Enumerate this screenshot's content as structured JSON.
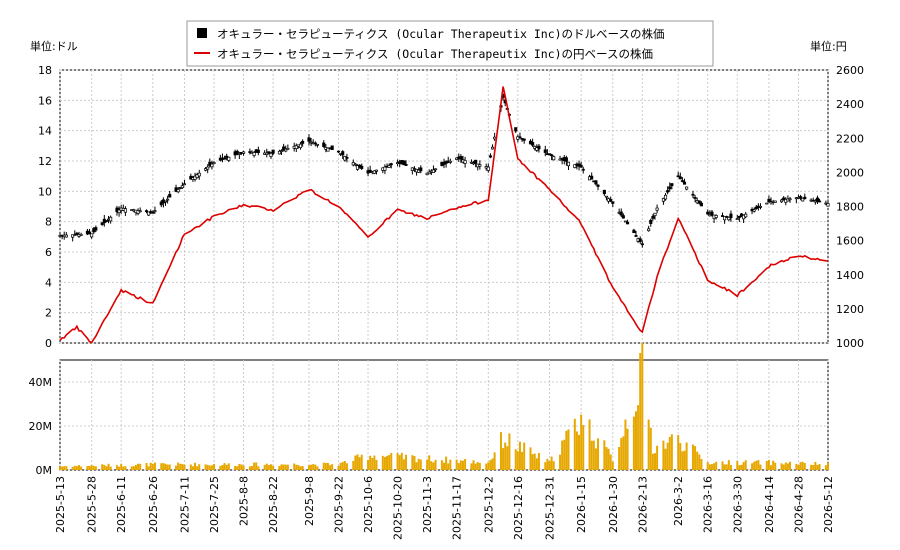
{
  "chart_data": {
    "type": "line",
    "left_unit_label": "単位:ドル",
    "right_unit_label": "単位:円",
    "legend": {
      "placement": "top-center",
      "entries": [
        {
          "name": "オキュラー・セラピューティクス (Ocular Therapeutix Inc)のドルベースの株価",
          "color": "#000000",
          "marker": "square"
        },
        {
          "name": "オキュラー・セラピューティクス (Ocular Therapeutix Inc)の円ベースの株価",
          "color": "#dd0000",
          "marker": "line"
        }
      ]
    },
    "price_axis_left": {
      "min": 0,
      "max": 18,
      "ticks": [
        0,
        2,
        4,
        6,
        8,
        10,
        12,
        14,
        16,
        18
      ]
    },
    "price_axis_right": {
      "min": 1000,
      "max": 2600,
      "ticks": [
        1000,
        1200,
        1400,
        1600,
        1800,
        2000,
        2200,
        2400,
        2600
      ]
    },
    "volume_axis": {
      "min": 0,
      "max": 50000000,
      "ticks": [
        0,
        20000000,
        40000000
      ],
      "tick_labels": [
        "0M",
        "20M",
        "40M"
      ]
    },
    "x_ticks": [
      "2025-5-13",
      "2025-5-28",
      "2025-6-11",
      "2025-6-26",
      "2025-7-11",
      "2025-7-25",
      "2025-8-8",
      "2025-8-22",
      "2025-9-8",
      "2025-9-22",
      "2025-10-6",
      "2025-10-20",
      "2025-11-3",
      "2025-11-17",
      "2025-12-2",
      "2025-12-16",
      "2025-12-31",
      "2026-1-15",
      "2026-1-30",
      "2026-2-13",
      "2026-3-2",
      "2026-3-16",
      "2026-3-30",
      "2026-4-14",
      "2026-4-28",
      "2026-5-12"
    ],
    "grid": true,
    "series": [
      {
        "name": "オキュラー・セラピューティクス (Ocular Therapeutix Inc)のドルベースの株価",
        "unit": "USD",
        "x": [
          "2025-5-13",
          "2025-5-28",
          "2025-6-11",
          "2025-6-26",
          "2025-7-11",
          "2025-7-25",
          "2025-8-8",
          "2025-8-22",
          "2025-9-8",
          "2025-9-22",
          "2025-10-6",
          "2025-10-20",
          "2025-11-3",
          "2025-11-17",
          "2025-12-2",
          "2025-12-9",
          "2025-12-16",
          "2025-12-31",
          "2026-1-15",
          "2026-1-30",
          "2026-2-13",
          "2026-2-20",
          "2026-3-2",
          "2026-3-16",
          "2026-3-30",
          "2026-4-14",
          "2026-4-28",
          "2026-5-12"
        ],
        "values": [
          7.1,
          7.2,
          8.9,
          8.6,
          10.5,
          11.9,
          12.6,
          12.5,
          13.3,
          12.6,
          11.2,
          11.9,
          11.2,
          12.2,
          11.6,
          16.2,
          13.6,
          12.4,
          11.6,
          9.2,
          6.5,
          8.9,
          11.0,
          8.5,
          8.2,
          9.3,
          9.6,
          9.2
        ]
      },
      {
        "name": "オキュラー・セラピューティクス (Ocular Therapeutix Inc)の円ベースの株価",
        "unit": "JPY",
        "x": [
          "2025-5-13",
          "2025-5-21",
          "2025-5-28",
          "2025-6-11",
          "2025-6-26",
          "2025-7-11",
          "2025-7-25",
          "2025-8-8",
          "2025-8-22",
          "2025-9-8",
          "2025-9-22",
          "2025-10-6",
          "2025-10-20",
          "2025-11-3",
          "2025-11-17",
          "2025-12-2",
          "2025-12-9",
          "2025-12-16",
          "2025-12-31",
          "2026-1-15",
          "2026-1-30",
          "2026-2-13",
          "2026-2-20",
          "2026-3-2",
          "2026-3-16",
          "2026-3-30",
          "2026-4-14",
          "2026-4-28",
          "2026-5-12"
        ],
        "values": [
          1020,
          1090,
          1000,
          1310,
          1230,
          1640,
          1740,
          1810,
          1780,
          1900,
          1800,
          1620,
          1780,
          1730,
          1790,
          1840,
          2500,
          2080,
          1900,
          1700,
          1320,
          1060,
          1390,
          1730,
          1370,
          1280,
          1450,
          1510,
          1480
        ]
      },
      {
        "name": "volume",
        "unit": "shares",
        "x": [
          "2025-5-13",
          "2025-6-26",
          "2025-9-22",
          "2025-10-6",
          "2025-12-2",
          "2025-12-9",
          "2025-12-31",
          "2026-1-15",
          "2026-1-30",
          "2026-2-13",
          "2026-2-18",
          "2026-3-2",
          "2026-3-16",
          "2026-4-14",
          "2026-5-12"
        ],
        "values": [
          2000000,
          3000000,
          3000000,
          8000000,
          4000000,
          17000000,
          4000000,
          28000000,
          6000000,
          51000000,
          12000000,
          17000000,
          4000000,
          4000000,
          3000000
        ]
      }
    ]
  }
}
